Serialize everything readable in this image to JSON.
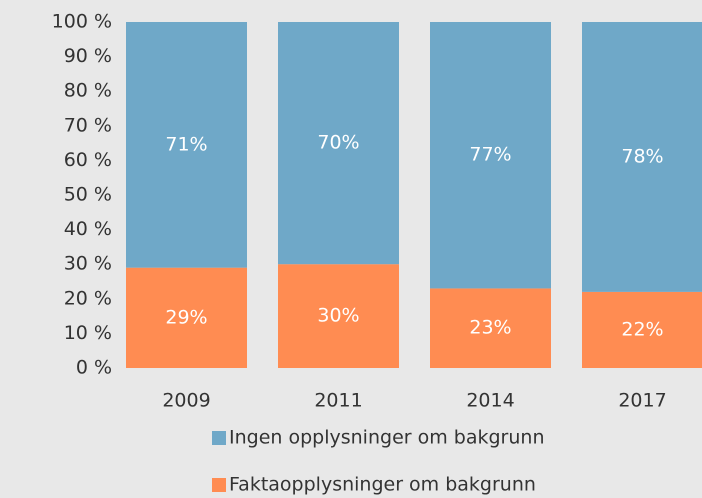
{
  "chart_data": {
    "type": "stacked_bar",
    "categories": [
      "2009",
      "2011",
      "2014",
      "2017"
    ],
    "series": [
      {
        "name": "Faktaopplysninger om bakgrunn",
        "color": "#ff8c52",
        "values": [
          29,
          30,
          23,
          22
        ],
        "value_labels": [
          "29%",
          "30%",
          "23%",
          "22%"
        ]
      },
      {
        "name": "Ingen opplysninger om bakgrunn",
        "color": "#6fa8c8",
        "values": [
          71,
          70,
          77,
          78
        ],
        "value_labels": [
          "71%",
          "70%",
          "77%",
          "78%"
        ]
      }
    ],
    "legend_order": [
      1,
      0
    ],
    "ylim": [
      0,
      100
    ],
    "yticks": [
      {
        "value": 0,
        "label": "0 %"
      },
      {
        "value": 10,
        "label": "10 %"
      },
      {
        "value": 20,
        "label": "20 %"
      },
      {
        "value": 30,
        "label": "30 %"
      },
      {
        "value": 40,
        "label": "40 %"
      },
      {
        "value": 50,
        "label": "50 %"
      },
      {
        "value": 60,
        "label": "60 %"
      },
      {
        "value": 70,
        "label": "70 %"
      },
      {
        "value": 80,
        "label": "80 %"
      },
      {
        "value": 90,
        "label": "90 %"
      },
      {
        "value": 100,
        "label": "100 %"
      }
    ],
    "grid": false
  }
}
